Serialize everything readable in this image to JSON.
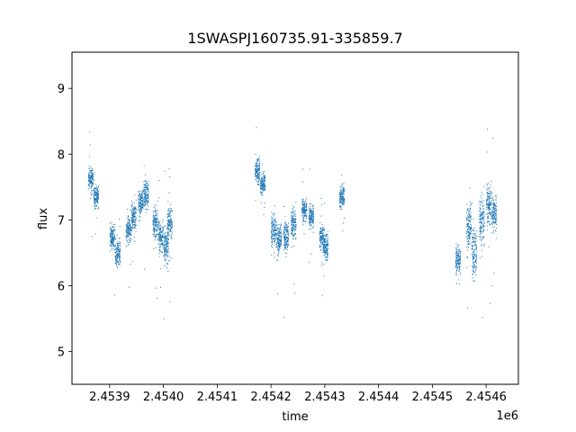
{
  "chart_data": {
    "type": "scatter",
    "title": "1SWASPJ160735.91-335859.7",
    "xlabel": "time",
    "ylabel": "flux",
    "x_offset_label": "1e6",
    "x_multiplier": 1000000,
    "xlim": [
      2.45383,
      2.45466
    ],
    "ylim": [
      4.5,
      9.55
    ],
    "xticks": [
      2.4539,
      2.454,
      2.4541,
      2.4542,
      2.4543,
      2.4544,
      2.4545,
      2.4546
    ],
    "xtick_labels": [
      "2.4539",
      "2.4540",
      "2.4541",
      "2.4542",
      "2.4543",
      "2.4544",
      "2.4545",
      "2.4546"
    ],
    "yticks": [
      5,
      6,
      7,
      8,
      9
    ],
    "ytick_labels": [
      "5",
      "6",
      "7",
      "8",
      "9"
    ],
    "grid": false,
    "legend": false,
    "point_color": "#1f77b4",
    "clusters": [
      {
        "x": 2.453865,
        "y": 7.62,
        "spread": 0.22
      },
      {
        "x": 2.453875,
        "y": 7.35,
        "spread": 0.2
      },
      {
        "x": 2.453905,
        "y": 6.72,
        "spread": 0.25
      },
      {
        "x": 2.453915,
        "y": 6.5,
        "spread": 0.25
      },
      {
        "x": 2.453935,
        "y": 6.85,
        "spread": 0.25
      },
      {
        "x": 2.453945,
        "y": 7.05,
        "spread": 0.25
      },
      {
        "x": 2.453958,
        "y": 7.25,
        "spread": 0.25
      },
      {
        "x": 2.453968,
        "y": 7.4,
        "spread": 0.28
      },
      {
        "x": 2.453985,
        "y": 6.95,
        "spread": 0.3
      },
      {
        "x": 2.453995,
        "y": 6.75,
        "spread": 0.3
      },
      {
        "x": 2.454005,
        "y": 6.6,
        "spread": 0.35
      },
      {
        "x": 2.454012,
        "y": 6.95,
        "spread": 0.3
      },
      {
        "x": 2.454175,
        "y": 7.75,
        "spread": 0.22
      },
      {
        "x": 2.454185,
        "y": 7.55,
        "spread": 0.2
      },
      {
        "x": 2.454205,
        "y": 6.85,
        "spread": 0.28
      },
      {
        "x": 2.454215,
        "y": 6.7,
        "spread": 0.3
      },
      {
        "x": 2.454228,
        "y": 6.75,
        "spread": 0.3
      },
      {
        "x": 2.454242,
        "y": 6.95,
        "spread": 0.28
      },
      {
        "x": 2.454262,
        "y": 7.15,
        "spread": 0.22
      },
      {
        "x": 2.454275,
        "y": 7.05,
        "spread": 0.22
      },
      {
        "x": 2.454295,
        "y": 6.72,
        "spread": 0.22
      },
      {
        "x": 2.454302,
        "y": 6.6,
        "spread": 0.22
      },
      {
        "x": 2.454332,
        "y": 7.35,
        "spread": 0.22
      },
      {
        "x": 2.454548,
        "y": 6.4,
        "spread": 0.25
      },
      {
        "x": 2.454568,
        "y": 6.9,
        "spread": 0.45
      },
      {
        "x": 2.454578,
        "y": 6.5,
        "spread": 0.5
      },
      {
        "x": 2.454592,
        "y": 7.0,
        "spread": 0.45
      },
      {
        "x": 2.454605,
        "y": 7.25,
        "spread": 0.4
      },
      {
        "x": 2.454615,
        "y": 7.1,
        "spread": 0.35
      }
    ]
  }
}
